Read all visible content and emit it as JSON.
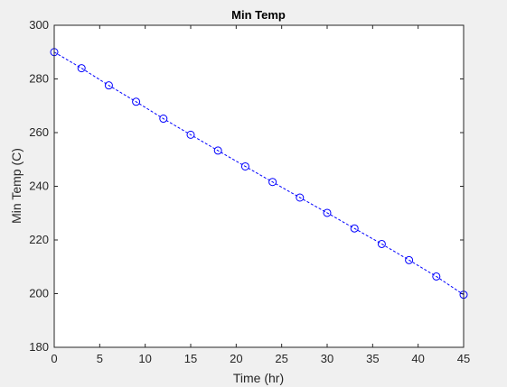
{
  "chart_data": {
    "type": "line",
    "title": "Min Temp",
    "xlabel": "Time (hr)",
    "ylabel": "Min Temp (C)",
    "xlim": [
      0,
      45
    ],
    "ylim": [
      180,
      300
    ],
    "xticks": [
      "0",
      "5",
      "10",
      "15",
      "20",
      "25",
      "30",
      "35",
      "40",
      "45"
    ],
    "yticks": [
      "180",
      "200",
      "220",
      "240",
      "260",
      "280",
      "300"
    ],
    "grid": false,
    "marker": "circle",
    "line_style": "dashed",
    "color": "#0000ff",
    "series": [
      {
        "x": [
          0,
          3,
          6,
          9,
          12,
          15,
          18,
          21,
          24,
          27,
          30,
          33,
          36,
          39,
          42,
          45
        ],
        "y": [
          290,
          284,
          277.6,
          271.5,
          265.2,
          259.2,
          253.3,
          247.4,
          241.6,
          235.8,
          230.1,
          224.3,
          218.5,
          212.5,
          206.4,
          199.6
        ]
      }
    ]
  }
}
